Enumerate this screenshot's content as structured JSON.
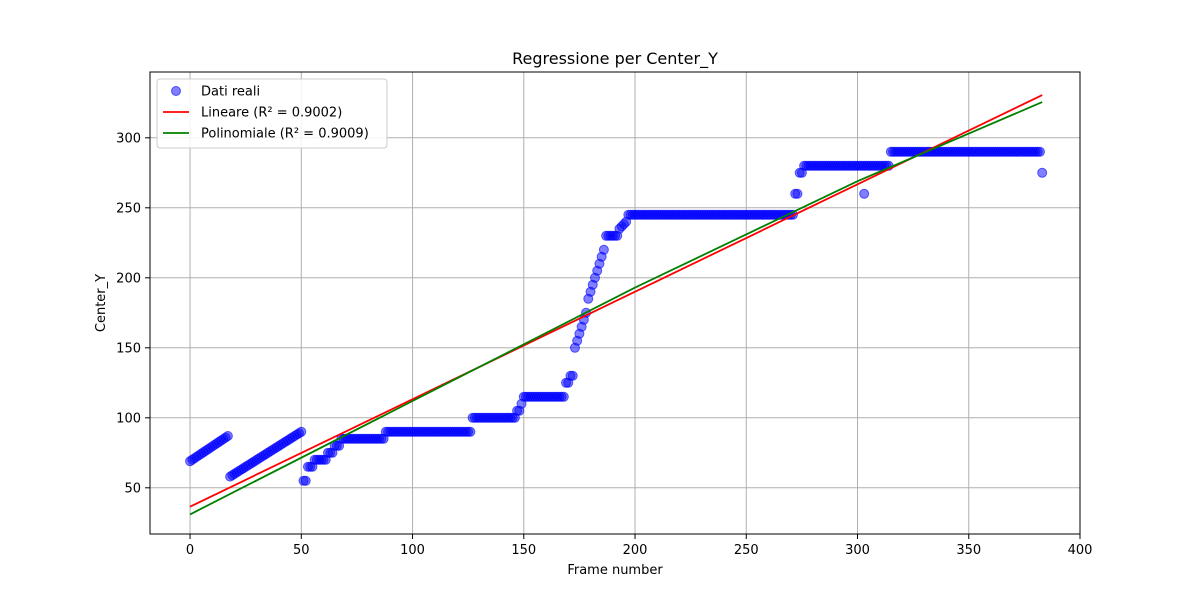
{
  "chart_data": {
    "type": "scatter",
    "title": "Regressione per Center_Y",
    "xlabel": "Frame number",
    "ylabel": "Center_Y",
    "xlim": [
      -18,
      400
    ],
    "ylim": [
      17,
      347
    ],
    "xticks": [
      0,
      50,
      100,
      150,
      200,
      250,
      300,
      350,
      400
    ],
    "yticks": [
      50,
      100,
      150,
      200,
      250,
      300
    ],
    "grid": true,
    "legend_position": "top-left",
    "colors": {
      "scatter": "#0000ff",
      "linear": "#ff0000",
      "poly": "#008000",
      "grid": "#b0b0b0"
    },
    "legend": [
      {
        "label": "Dati reali",
        "kind": "scatter"
      },
      {
        "label": "Lineare (R² = 0.9002)",
        "kind": "linear"
      },
      {
        "label": "Polinomiale (R² = 0.9009)",
        "kind": "poly"
      }
    ],
    "scatter_segments": [
      {
        "x0": 0,
        "x1": 17,
        "y0": 69,
        "y1": 87
      },
      {
        "x0": 18,
        "x1": 50,
        "y0": 58,
        "y1": 90
      },
      {
        "x0": 51,
        "x1": 52,
        "y0": 55,
        "y1": 55
      },
      {
        "x0": 53,
        "x1": 55,
        "y0": 65,
        "y1": 65
      },
      {
        "x0": 56,
        "x1": 61,
        "y0": 70,
        "y1": 70
      },
      {
        "x0": 62,
        "x1": 64,
        "y0": 75,
        "y1": 75
      },
      {
        "x0": 65,
        "x1": 67,
        "y0": 80,
        "y1": 80
      },
      {
        "x0": 68,
        "x1": 87,
        "y0": 85,
        "y1": 85
      },
      {
        "x0": 88,
        "x1": 126,
        "y0": 90,
        "y1": 90
      },
      {
        "x0": 127,
        "x1": 146,
        "y0": 100,
        "y1": 100
      },
      {
        "x0": 147,
        "x1": 148,
        "y0": 105,
        "y1": 105
      },
      {
        "x0": 149,
        "x1": 149,
        "y0": 110,
        "y1": 110
      },
      {
        "x0": 150,
        "x1": 168,
        "y0": 115,
        "y1": 115
      },
      {
        "x0": 169,
        "x1": 170,
        "y0": 125,
        "y1": 125
      },
      {
        "x0": 171,
        "x1": 172,
        "y0": 130,
        "y1": 130
      },
      {
        "x0": 173,
        "x1": 178,
        "y0": 150,
        "y1": 175
      },
      {
        "x0": 179,
        "x1": 186,
        "y0": 185,
        "y1": 220
      },
      {
        "x0": 187,
        "x1": 192,
        "y0": 230,
        "y1": 230
      },
      {
        "x0": 193,
        "x1": 196,
        "y0": 235,
        "y1": 240
      },
      {
        "x0": 197,
        "x1": 271,
        "y0": 245,
        "y1": 245
      },
      {
        "x0": 272,
        "x1": 273,
        "y0": 260,
        "y1": 260
      },
      {
        "x0": 274,
        "x1": 275,
        "y0": 275,
        "y1": 275
      },
      {
        "x0": 276,
        "x1": 314,
        "y0": 280,
        "y1": 280
      },
      {
        "x0": 315,
        "x1": 382,
        "y0": 290,
        "y1": 290
      }
    ],
    "scatter_extra": [
      {
        "x": 303,
        "y": 260
      },
      {
        "x": 383,
        "y": 275
      }
    ],
    "linear_fit": {
      "x": [
        0,
        383
      ],
      "y": [
        36.5,
        330.5
      ]
    },
    "poly_fit": {
      "x": [
        0,
        100,
        200,
        300,
        383
      ],
      "y": [
        31,
        112,
        193,
        269,
        325.5
      ]
    }
  }
}
